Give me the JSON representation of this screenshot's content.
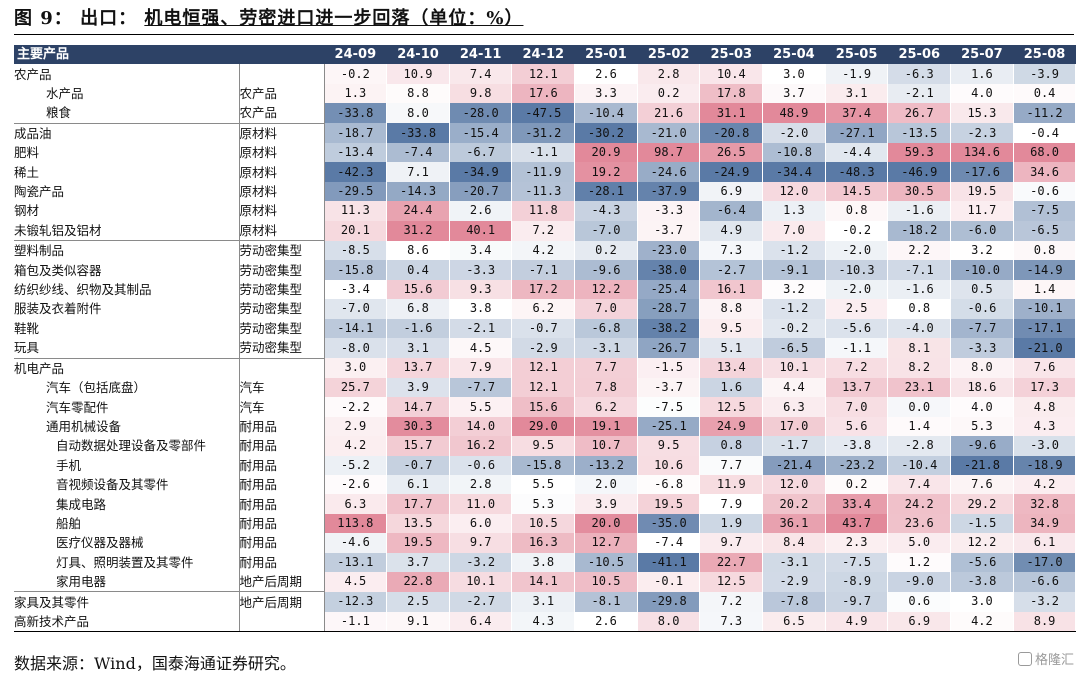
{
  "figure": {
    "label": "图 9：",
    "subject": "出口：",
    "subtitle": "机电恒强、劳密进口进一步回落（单位：%）"
  },
  "table": {
    "header_label": "主要产品",
    "months": [
      "24-09",
      "24-10",
      "24-11",
      "24-12",
      "25-01",
      "25-02",
      "25-03",
      "25-04",
      "25-05",
      "25-06",
      "25-07",
      "25-08"
    ],
    "rows": [
      {
        "name": "农产品",
        "cat": "",
        "level": 0,
        "values": [
          "-0.2",
          "10.9",
          "7.4",
          "12.1",
          "2.6",
          "2.8",
          "10.4",
          "3.0",
          "-1.9",
          "-6.3",
          "1.6",
          "-3.9"
        ]
      },
      {
        "name": "水产品",
        "cat": "农产品",
        "level": 1,
        "values": [
          "1.3",
          "8.8",
          "9.8",
          "17.6",
          "3.3",
          "0.2",
          "17.8",
          "3.7",
          "3.1",
          "-2.1",
          "4.0",
          "0.4"
        ]
      },
      {
        "name": "粮食",
        "cat": "农产品",
        "level": 1,
        "values": [
          "-33.8",
          "8.0",
          "-28.0",
          "-47.5",
          "-10.4",
          "21.6",
          "31.1",
          "48.9",
          "37.4",
          "26.7",
          "15.3",
          "-11.2"
        ]
      },
      {
        "name": "成品油",
        "cat": "原材料",
        "level": 0,
        "values": [
          "-18.7",
          "-33.8",
          "-15.4",
          "-31.2",
          "-30.2",
          "-21.0",
          "-20.8",
          "-2.0",
          "-27.1",
          "-13.5",
          "-2.3",
          "-0.4"
        ]
      },
      {
        "name": "肥料",
        "cat": "原材料",
        "level": 0,
        "values": [
          "-13.4",
          "-7.4",
          "-6.7",
          "-1.1",
          "20.9",
          "98.7",
          "26.5",
          "-10.8",
          "-4.4",
          "59.3",
          "134.6",
          "68.0"
        ]
      },
      {
        "name": "稀土",
        "cat": "原材料",
        "level": 0,
        "values": [
          "-42.3",
          "7.1",
          "-34.9",
          "-11.9",
          "19.2",
          "-24.6",
          "-24.9",
          "-34.4",
          "-48.3",
          "-46.9",
          "-17.6",
          "34.6"
        ]
      },
      {
        "name": "陶瓷产品",
        "cat": "原材料",
        "level": 0,
        "values": [
          "-29.5",
          "-14.3",
          "-20.7",
          "-11.3",
          "-28.1",
          "-37.9",
          "6.9",
          "12.0",
          "14.5",
          "30.5",
          "19.5",
          "-0.6"
        ]
      },
      {
        "name": "钢材",
        "cat": "原材料",
        "level": 0,
        "values": [
          "11.3",
          "24.4",
          "2.6",
          "11.8",
          "-4.3",
          "-3.3",
          "-6.4",
          "1.3",
          "0.8",
          "-1.6",
          "11.7",
          "-7.5"
        ]
      },
      {
        "name": "未锻轧铝及铝材",
        "cat": "原材料",
        "level": 0,
        "values": [
          "20.1",
          "31.2",
          "40.1",
          "7.2",
          "-7.0",
          "-3.7",
          "4.9",
          "7.0",
          "-0.2",
          "-18.2",
          "-6.0",
          "-6.5"
        ]
      },
      {
        "name": "塑料制品",
        "cat": "劳动密集型",
        "level": 0,
        "values": [
          "-8.5",
          "8.6",
          "3.4",
          "4.2",
          "0.2",
          "-23.0",
          "7.3",
          "-1.2",
          "-2.0",
          "2.2",
          "3.2",
          "0.8"
        ]
      },
      {
        "name": "箱包及类似容器",
        "cat": "劳动密集型",
        "level": 0,
        "values": [
          "-15.8",
          "0.4",
          "-3.3",
          "-7.1",
          "-9.6",
          "-38.0",
          "-2.7",
          "-9.1",
          "-10.3",
          "-7.1",
          "-10.0",
          "-14.9"
        ]
      },
      {
        "name": "纺织纱线、织物及其制品",
        "cat": "劳动密集型",
        "level": 0,
        "values": [
          "-3.4",
          "15.6",
          "9.3",
          "17.2",
          "12.2",
          "-25.4",
          "16.1",
          "3.2",
          "-2.0",
          "-1.6",
          "0.5",
          "1.4"
        ]
      },
      {
        "name": "服装及衣着附件",
        "cat": "劳动密集型",
        "level": 0,
        "values": [
          "-7.0",
          "6.8",
          "3.8",
          "6.2",
          "7.0",
          "-28.7",
          "8.8",
          "-1.2",
          "2.5",
          "0.8",
          "-0.6",
          "-10.1"
        ]
      },
      {
        "name": "鞋靴",
        "cat": "劳动密集型",
        "level": 0,
        "values": [
          "-14.1",
          "-1.6",
          "-2.1",
          "-0.7",
          "-6.8",
          "-38.2",
          "9.5",
          "-0.2",
          "-5.6",
          "-4.0",
          "-7.7",
          "-17.1"
        ]
      },
      {
        "name": "玩具",
        "cat": "劳动密集型",
        "level": 0,
        "values": [
          "-8.0",
          "3.1",
          "4.5",
          "-2.9",
          "-3.1",
          "-26.7",
          "5.1",
          "-6.5",
          "-1.1",
          "8.1",
          "-3.3",
          "-21.0"
        ]
      },
      {
        "name": "机电产品",
        "cat": "",
        "level": 0,
        "values": [
          "3.0",
          "13.7",
          "7.9",
          "12.1",
          "7.7",
          "-1.5",
          "13.4",
          "10.1",
          "7.2",
          "8.2",
          "8.0",
          "7.6"
        ]
      },
      {
        "name": "汽车（包括底盘）",
        "cat": "汽车",
        "level": 1,
        "values": [
          "25.7",
          "3.9",
          "-7.7",
          "12.1",
          "7.8",
          "-3.7",
          "1.6",
          "4.4",
          "13.7",
          "23.1",
          "18.6",
          "17.3"
        ]
      },
      {
        "name": "汽车零配件",
        "cat": "汽车",
        "level": 1,
        "values": [
          "-2.2",
          "14.7",
          "5.5",
          "15.6",
          "6.2",
          "-7.5",
          "12.5",
          "6.3",
          "7.0",
          "0.0",
          "4.0",
          "4.8"
        ]
      },
      {
        "name": "通用机械设备",
        "cat": "耐用品",
        "level": 1,
        "values": [
          "2.9",
          "30.3",
          "14.0",
          "29.0",
          "19.1",
          "-25.1",
          "24.9",
          "17.0",
          "5.6",
          "1.4",
          "5.3",
          "4.3"
        ]
      },
      {
        "name": "自动数据处理设备及零部件",
        "cat": "耐用品",
        "level": 2,
        "values": [
          "4.2",
          "15.7",
          "16.2",
          "9.5",
          "10.7",
          "9.5",
          "0.8",
          "-1.7",
          "-3.8",
          "-2.8",
          "-9.6",
          "-3.0"
        ]
      },
      {
        "name": "手机",
        "cat": "耐用品",
        "level": 2,
        "values": [
          "-5.2",
          "-0.7",
          "-0.6",
          "-15.8",
          "-13.2",
          "10.6",
          "7.7",
          "-21.4",
          "-23.2",
          "-10.4",
          "-21.8",
          "-18.9"
        ]
      },
      {
        "name": "音视频设备及其零件",
        "cat": "耐用品",
        "level": 2,
        "values": [
          "-2.6",
          "6.1",
          "2.8",
          "5.5",
          "2.0",
          "-6.8",
          "11.9",
          "12.0",
          "0.2",
          "7.4",
          "7.6",
          "4.2"
        ]
      },
      {
        "name": "集成电路",
        "cat": "耐用品",
        "level": 2,
        "values": [
          "6.3",
          "17.7",
          "11.0",
          "5.3",
          "3.9",
          "19.5",
          "7.9",
          "20.2",
          "33.4",
          "24.2",
          "29.2",
          "32.8"
        ]
      },
      {
        "name": "船舶",
        "cat": "耐用品",
        "level": 2,
        "values": [
          "113.8",
          "13.5",
          "6.0",
          "10.5",
          "20.0",
          "-35.0",
          "1.9",
          "36.1",
          "43.7",
          "23.6",
          "-1.5",
          "34.9"
        ]
      },
      {
        "name": "医疗仪器及器械",
        "cat": "耐用品",
        "level": 2,
        "values": [
          "-4.6",
          "19.5",
          "9.7",
          "16.3",
          "12.7",
          "-7.4",
          "9.7",
          "8.4",
          "2.3",
          "5.0",
          "12.2",
          "6.1"
        ]
      },
      {
        "name": "灯具、照明装置及其零件",
        "cat": "耐用品",
        "level": 2,
        "values": [
          "-13.1",
          "3.7",
          "-3.2",
          "3.8",
          "-10.5",
          "-41.1",
          "22.7",
          "-3.1",
          "-7.5",
          "1.2",
          "-5.6",
          "-17.0"
        ]
      },
      {
        "name": "家用电器",
        "cat": "地产后周期",
        "level": 2,
        "values": [
          "4.5",
          "22.8",
          "10.1",
          "14.1",
          "10.5",
          "-0.1",
          "12.5",
          "-2.9",
          "-8.9",
          "-9.0",
          "-3.8",
          "-6.6"
        ]
      },
      {
        "name": "家具及其零件",
        "cat": "地产后周期",
        "level": 0,
        "values": [
          "-12.3",
          "2.5",
          "-2.7",
          "3.1",
          "-8.1",
          "-29.8",
          "7.2",
          "-7.8",
          "-9.7",
          "0.6",
          "3.0",
          "-3.2"
        ]
      },
      {
        "name": "高新技术产品",
        "cat": "",
        "level": 0,
        "values": [
          "-1.1",
          "9.1",
          "6.4",
          "4.3",
          "2.6",
          "8.0",
          "7.3",
          "6.5",
          "4.9",
          "6.9",
          "4.2",
          "8.9"
        ]
      }
    ]
  },
  "source": "数据来源：Wind，国泰海通证券研究。",
  "watermark": "格隆汇",
  "colors": {
    "header_bg": "#2d4266",
    "positive_strong": "#e2899a",
    "negative_strong": "#5a7aa6",
    "neutral": "#ffffff"
  }
}
